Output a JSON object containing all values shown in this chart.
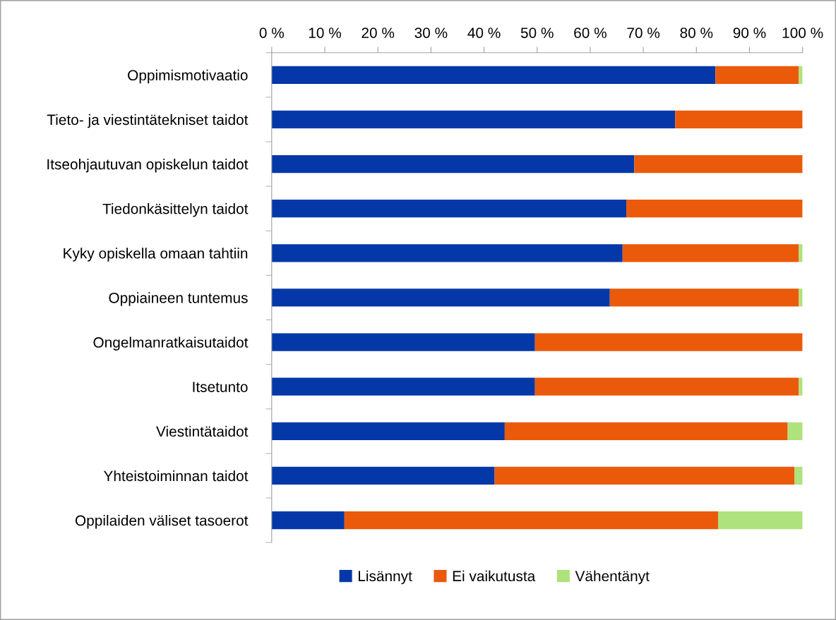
{
  "chart_data": {
    "type": "bar",
    "orientation": "horizontal",
    "stacked": true,
    "categories": [
      "Oppimismotivaatio",
      "Tieto- ja viestintätekniset taidot",
      "Itseohjautuvan opiskelun taidot",
      "Tiedonkäsittelyn taidot",
      "Kyky opiskella omaan tahtiin",
      "Oppiaineen tuntemus",
      "Ongelmanratkaisutaidot",
      "Itsetunto",
      "Viestintätaidot",
      "Yhteistoiminnan taidot",
      "Oppilaiden väliset tasoerot"
    ],
    "series": [
      {
        "name": "Lisännyt",
        "color": "#0438a8",
        "values": [
          83.6,
          76.0,
          68.3,
          66.8,
          66.1,
          63.7,
          49.6,
          49.6,
          43.9,
          42.0,
          13.7
        ]
      },
      {
        "name": "Ei vaikutusta",
        "color": "#ea5a0a",
        "values": [
          15.7,
          24.0,
          31.7,
          33.2,
          33.2,
          35.6,
          50.4,
          49.7,
          53.3,
          56.5,
          70.4
        ]
      },
      {
        "name": "Vähentänyt",
        "color": "#aee27c",
        "values": [
          0.7,
          0,
          0,
          0,
          0.7,
          0.7,
          0,
          0.7,
          2.8,
          1.5,
          15.9
        ]
      }
    ],
    "xlim": [
      0,
      100
    ],
    "xticks": [
      {
        "value": 0,
        "label": "0 %"
      },
      {
        "value": 10,
        "label": "10 %"
      },
      {
        "value": 20,
        "label": "20 %"
      },
      {
        "value": 30,
        "label": "30 %"
      },
      {
        "value": 40,
        "label": "40 %"
      },
      {
        "value": 50,
        "label": "50 %"
      },
      {
        "value": 60,
        "label": "60 %"
      },
      {
        "value": 70,
        "label": "70 %"
      },
      {
        "value": 80,
        "label": "80 %"
      },
      {
        "value": 90,
        "label": "90 %"
      },
      {
        "value": 100,
        "label": "100 %"
      }
    ],
    "grid": false,
    "legend": "bottom"
  }
}
